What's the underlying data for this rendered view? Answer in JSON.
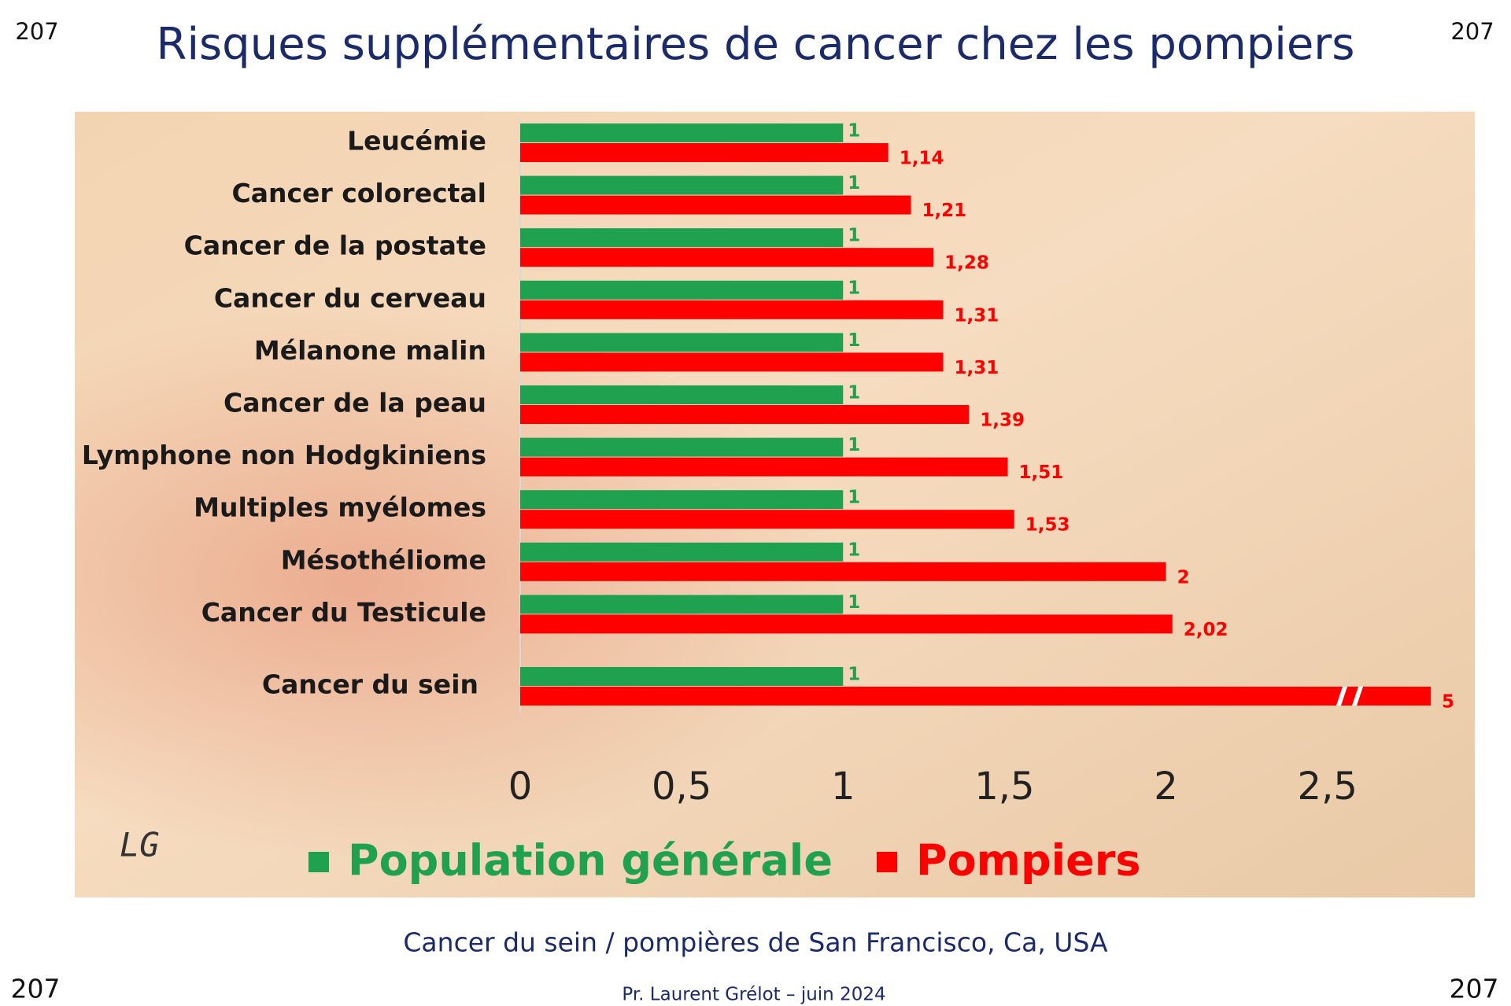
{
  "page_numbers": [
    "207",
    "207",
    "207",
    "207"
  ],
  "caption": "Cancer du sein / pompières de San Francisco, Ca, USA",
  "footer": "Pr. Laurent Grélot –  juin 2024",
  "signature": "LG",
  "chart_data": {
    "type": "bar",
    "orientation": "horizontal",
    "title": "Risques supplémentaires de cancer chez les pompiers",
    "categories": [
      "Leucémie",
      "Cancer colorectal",
      "Cancer de la postate",
      "Cancer du cerveau",
      "Mélanone malin",
      "Cancer de la peau",
      "Lymphone non Hodgkiniens",
      "Multiples myélomes",
      "Mésothéliome",
      "Cancer du Testicule",
      "Cancer du sein"
    ],
    "series": [
      {
        "name": "Population générale",
        "color": "#1fa14f",
        "values": [
          1,
          1,
          1,
          1,
          1,
          1,
          1,
          1,
          1,
          1,
          1
        ]
      },
      {
        "name": "Pompiers",
        "color": "#ff0000",
        "values": [
          1.14,
          1.21,
          1.28,
          1.31,
          1.31,
          1.39,
          1.51,
          1.53,
          2,
          2.02,
          5
        ],
        "value_labels": [
          "1,14",
          "1,21",
          "1,28",
          "1,31",
          "1,31",
          "1,39",
          "1,51",
          "1,53",
          "2",
          "2,02",
          "5"
        ]
      }
    ],
    "xlim": [
      0,
      2.82
    ],
    "xticks": [
      0,
      {
        "value": 0.5,
        "label": "0,5"
      },
      1,
      {
        "value": 1.5,
        "label": "1,5"
      },
      2,
      {
        "value": 2.5,
        "label": "2,5"
      }
    ],
    "axis_break": true,
    "legend": "bottom"
  }
}
